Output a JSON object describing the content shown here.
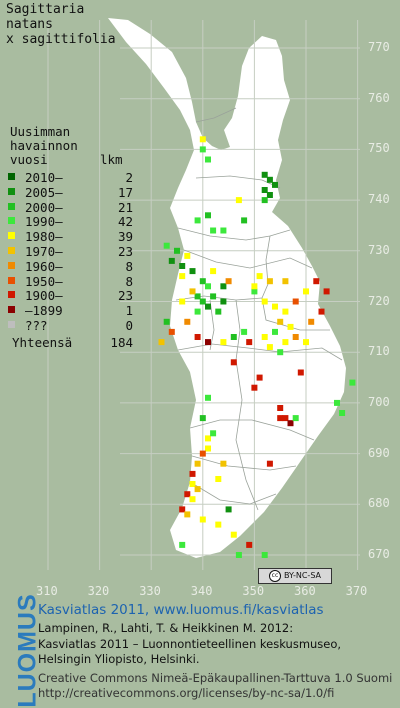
{
  "title": [
    "Sagittaria",
    "natans",
    "x sagittifolia"
  ],
  "legend": {
    "head": [
      "Uusimman",
      "havainnon"
    ],
    "col_year": "vuosi",
    "col_count": "lkm",
    "rows": [
      {
        "label": "2010–",
        "count": "2",
        "color": "#006400"
      },
      {
        "label": "2005–",
        "count": "17",
        "color": "#109010"
      },
      {
        "label": "2000–",
        "count": "21",
        "color": "#22c022"
      },
      {
        "label": "1990–",
        "count": "42",
        "color": "#3ce83c"
      },
      {
        "label": "1980–",
        "count": "39",
        "color": "#ffff00"
      },
      {
        "label": "1970–",
        "count": "23",
        "color": "#f2c200"
      },
      {
        "label": "1960–",
        "count": "8",
        "color": "#f08a00"
      },
      {
        "label": "1950–",
        "count": "8",
        "color": "#e85000"
      },
      {
        "label": "1900–",
        "count": "23",
        "color": "#d01800"
      },
      {
        "label": "–1899",
        "count": "1",
        "color": "#8b0000"
      },
      {
        "label": "???",
        "count": "0",
        "color": "#bebebe"
      }
    ],
    "total_label": "Yhteensä",
    "total": "184"
  },
  "y_ticks": [
    "770",
    "760",
    "750",
    "740",
    "730",
    "720",
    "710",
    "700",
    "690",
    "680",
    "670"
  ],
  "x_ticks": [
    "310",
    "320",
    "330",
    "340",
    "350",
    "360",
    "370"
  ],
  "cc_badge": "BY-NC-SA",
  "logo": "LUOMUS",
  "credits": {
    "line1": "Kasviatlas 2011, www.luomus.fi/kasviatlas",
    "line2": "Lampinen, R., Lahti, T. & Heikkinen M. 2012:",
    "line3": "Kasviatlas 2011 – Luonnontieteellinen keskusmuseo,",
    "line4": "Helsingin Yliopisto, Helsinki.",
    "line5": "Creative Commons Nimeä-Epäkaupallinen-Tarttuva 1.0 Suomi",
    "line6": "http://creativecommons.org/licenses/by-nc-sa/1.0/fi"
  },
  "colors": {
    "background": "#a9bca0",
    "land": "#ffffff",
    "link": "#1d63b0",
    "logo": "#2b7bbd"
  },
  "occurrences": [
    [
      340,
      752,
      4
    ],
    [
      340,
      750,
      3
    ],
    [
      341,
      748,
      3
    ],
    [
      352,
      745,
      1
    ],
    [
      353,
      744,
      1
    ],
    [
      352,
      742,
      1
    ],
    [
      353,
      741,
      1
    ],
    [
      354,
      743,
      1
    ],
    [
      352,
      740,
      2
    ],
    [
      347,
      740,
      4
    ],
    [
      348,
      736,
      2
    ],
    [
      342,
      734,
      3
    ],
    [
      339,
      736,
      3
    ],
    [
      344,
      734,
      3
    ],
    [
      341,
      737,
      2
    ],
    [
      333,
      731,
      3
    ],
    [
      335,
      730,
      2
    ],
    [
      334,
      728,
      1
    ],
    [
      336,
      727,
      1
    ],
    [
      337,
      729,
      4
    ],
    [
      336,
      725,
      4
    ],
    [
      338,
      726,
      1
    ],
    [
      340,
      724,
      2
    ],
    [
      342,
      726,
      4
    ],
    [
      344,
      723,
      1
    ],
    [
      339,
      721,
      2
    ],
    [
      340,
      720,
      2
    ],
    [
      341,
      719,
      1
    ],
    [
      342,
      721,
      2
    ],
    [
      341,
      723,
      3
    ],
    [
      339,
      718,
      3
    ],
    [
      343,
      718,
      2
    ],
    [
      344,
      720,
      1
    ],
    [
      338,
      722,
      5
    ],
    [
      336,
      720,
      4
    ],
    [
      337,
      716,
      6
    ],
    [
      334,
      714,
      7
    ],
    [
      332,
      712,
      5
    ],
    [
      333,
      716,
      2
    ],
    [
      350,
      722,
      3
    ],
    [
      352,
      720,
      4
    ],
    [
      354,
      719,
      4
    ],
    [
      356,
      718,
      4
    ],
    [
      355,
      716,
      5
    ],
    [
      357,
      715,
      4
    ],
    [
      354,
      714,
      3
    ],
    [
      352,
      713,
      4
    ],
    [
      356,
      712,
      4
    ],
    [
      358,
      713,
      6
    ],
    [
      353,
      711,
      4
    ],
    [
      355,
      710,
      3
    ],
    [
      360,
      712,
      4
    ],
    [
      361,
      716,
      6
    ],
    [
      351,
      725,
      4
    ],
    [
      350,
      723,
      4
    ],
    [
      353,
      724,
      5
    ],
    [
      356,
      724,
      5
    ],
    [
      360,
      722,
      4
    ],
    [
      345,
      724,
      6
    ],
    [
      362,
      724,
      8
    ],
    [
      364,
      722,
      8
    ],
    [
      363,
      718,
      8
    ],
    [
      349,
      712,
      8
    ],
    [
      346,
      713,
      2
    ],
    [
      348,
      714,
      3
    ],
    [
      344,
      712,
      4
    ],
    [
      341,
      712,
      9
    ],
    [
      339,
      713,
      8
    ],
    [
      358,
      720,
      7
    ],
    [
      359,
      706,
      8
    ],
    [
      351,
      705,
      8
    ],
    [
      350,
      703,
      8
    ],
    [
      355,
      699,
      8
    ],
    [
      356,
      697,
      8
    ],
    [
      357,
      696,
      9
    ],
    [
      355,
      697,
      8
    ],
    [
      358,
      697,
      3
    ],
    [
      366,
      700,
      3
    ],
    [
      367,
      698,
      3
    ],
    [
      369,
      704,
      3
    ],
    [
      346,
      708,
      8
    ],
    [
      341,
      701,
      3
    ],
    [
      340,
      697,
      2
    ],
    [
      341,
      691,
      4
    ],
    [
      340,
      690,
      7
    ],
    [
      339,
      688,
      5
    ],
    [
      338,
      686,
      8
    ],
    [
      338,
      684,
      4
    ],
    [
      337,
      682,
      8
    ],
    [
      339,
      683,
      5
    ],
    [
      338,
      681,
      4
    ],
    [
      336,
      679,
      8
    ],
    [
      337,
      678,
      5
    ],
    [
      340,
      677,
      4
    ],
    [
      343,
      676,
      4
    ],
    [
      345,
      679,
      1
    ],
    [
      346,
      674,
      4
    ],
    [
      349,
      672,
      8
    ],
    [
      347,
      670,
      3
    ],
    [
      336,
      672,
      3
    ],
    [
      352,
      670,
      3
    ],
    [
      343,
      685,
      4
    ],
    [
      344,
      688,
      5
    ],
    [
      341,
      693,
      4
    ],
    [
      342,
      694,
      3
    ],
    [
      353,
      688,
      8
    ]
  ]
}
